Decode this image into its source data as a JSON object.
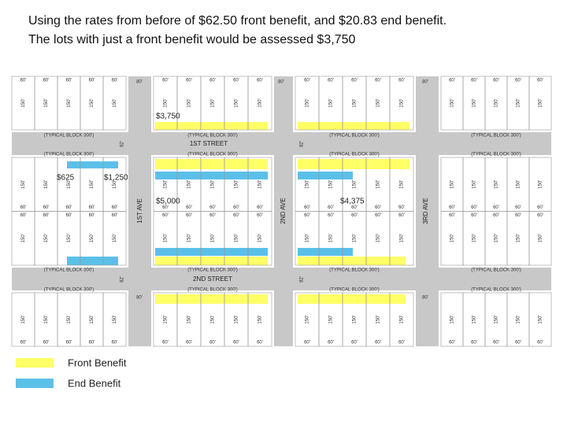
{
  "header": {
    "line1": "Using the rates from before of $62.50 front benefit, and $20.83 end benefit.",
    "line2": "The lots with just a front benefit would be assessed $3,750"
  },
  "map": {
    "streets": [
      "1ST STREET",
      "2ND STREET"
    ],
    "avenues": [
      "1ST AVE",
      "2ND AVE",
      "3RD AVE"
    ],
    "amounts": [
      "$3,750",
      "$625",
      "$1,250",
      "$5,000",
      "$4,375"
    ],
    "lot_width": "60'",
    "lot_depth": "150'",
    "block_label": "(TYPICAL BLOCK 300')",
    "street_width": "80'",
    "street_width_alt": "82'"
  },
  "legend": [
    {
      "label": "Front Benefit",
      "color": "#ffff66"
    },
    {
      "label": "End Benefit",
      "color": "#5bc0e8"
    }
  ]
}
